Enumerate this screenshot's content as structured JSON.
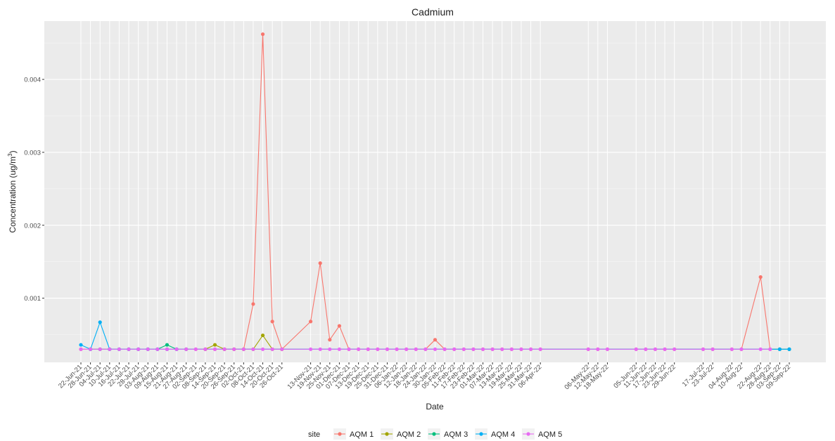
{
  "chart_data": {
    "type": "line",
    "title": "Cadmium",
    "xlabel": "Date",
    "ylabel": "Concentration (ug/m",
    "ylabel_superscript": "3",
    "ylabel_suffix": ")",
    "y_ticks": [
      0.001,
      0.002,
      0.003,
      0.004
    ],
    "y_tick_labels": [
      "0.001",
      "0.002",
      "0.003",
      "0.004"
    ],
    "ylim": [
      0.00012,
      0.0048
    ],
    "grid": true,
    "legend_title": "site",
    "legend_position": "bottom",
    "dates": [
      "2021-06-22",
      "2021-06-28",
      "2021-07-04",
      "2021-07-10",
      "2021-07-16",
      "2021-07-22",
      "2021-07-28",
      "2021-08-03",
      "2021-08-09",
      "2021-08-15",
      "2021-08-21",
      "2021-08-27",
      "2021-09-02",
      "2021-09-08",
      "2021-09-14",
      "2021-09-20",
      "2021-09-26",
      "2021-10-02",
      "2021-10-08",
      "2021-10-14",
      "2021-10-20",
      "2021-10-26",
      "2021-11-13",
      "2021-11-19",
      "2021-11-25",
      "2021-12-01",
      "2021-12-07",
      "2021-12-13",
      "2021-12-19",
      "2021-12-25",
      "2021-12-31",
      "2022-01-06",
      "2022-01-12",
      "2022-01-18",
      "2022-01-24",
      "2022-01-30",
      "2022-02-05",
      "2022-02-11",
      "2022-02-17",
      "2022-02-23",
      "2022-03-01",
      "2022-03-07",
      "2022-03-13",
      "2022-03-19",
      "2022-03-25",
      "2022-03-31",
      "2022-04-06",
      "2022-05-06",
      "2022-05-12",
      "2022-05-18",
      "2022-06-05",
      "2022-06-11",
      "2022-06-17",
      "2022-06-23",
      "2022-06-29",
      "2022-07-17",
      "2022-07-23",
      "2022-08-04",
      "2022-08-10",
      "2022-08-22",
      "2022-08-28",
      "2022-09-03",
      "2022-09-09"
    ],
    "tick_labels": [
      "22-Jun-21",
      "28-Jun-21",
      "04-Jul-21",
      "10-Jul-21",
      "16-Jul-21",
      "22-Jul-21",
      "28-Jul-21",
      "03-Aug-21",
      "09-Aug-21",
      "15-Aug-21",
      "21-Aug-21",
      "27-Aug-21",
      "02-Sep-21",
      "08-Sep-21",
      "14-Sep-21",
      "20-Sep-21",
      "26-Sep-21",
      "02-Oct-21",
      "08-Oct-21",
      "14-Oct-21",
      "20-Oct-21",
      "26-Oct-21",
      "13-Nov-21",
      "19-Nov-21",
      "25-Nov-21",
      "01-Dec-21",
      "07-Dec-21",
      "13-Dec-21",
      "19-Dec-21",
      "25-Dec-21",
      "31-Dec-21",
      "06-Jan-22",
      "12-Jan-22",
      "18-Jan-22",
      "24-Jan-22",
      "30-Jan-22",
      "05-Feb-22",
      "11-Feb-22",
      "17-Feb-22",
      "23-Feb-22",
      "01-Mar-22",
      "07-Mar-22",
      "13-Mar-22",
      "19-Mar-22",
      "25-Mar-22",
      "31-Mar-22",
      "06-Apr-22",
      "06-May-22",
      "12-May-22",
      "18-May-22",
      "05-Jun-22",
      "11-Jun-22",
      "17-Jun-22",
      "23-Jun-22",
      "29-Jun-22",
      "17-Jul-22",
      "23-Jul-22",
      "04-Aug-22",
      "10-Aug-22",
      "22-Aug-22",
      "28-Aug-22",
      "03-Sep-22",
      "09-Sep-22"
    ],
    "series": [
      {
        "name": "AQM 1",
        "color": "#F8766D",
        "points": [
          [
            "2021-06-22",
            0.0003
          ],
          [
            "2021-06-28",
            0.0003
          ],
          [
            "2021-07-04",
            0.0003
          ],
          [
            "2021-07-10",
            0.0003
          ],
          [
            "2021-07-16",
            0.0003
          ],
          [
            "2021-07-22",
            0.0003
          ],
          [
            "2021-07-28",
            0.0003
          ],
          [
            "2021-08-03",
            0.0003
          ],
          [
            "2021-08-09",
            0.0003
          ],
          [
            "2021-08-15",
            0.0003
          ],
          [
            "2021-08-21",
            0.0003
          ],
          [
            "2021-08-27",
            0.0003
          ],
          [
            "2021-09-02",
            0.0003
          ],
          [
            "2021-09-08",
            0.0003
          ],
          [
            "2021-09-14",
            0.0003
          ],
          [
            "2021-09-20",
            0.0003
          ],
          [
            "2021-09-26",
            0.0003
          ],
          [
            "2021-10-02",
            0.0003
          ],
          [
            "2021-10-08",
            0.00092
          ],
          [
            "2021-10-14",
            0.00462
          ],
          [
            "2021-10-20",
            0.00068
          ],
          [
            "2021-10-26",
            0.0003
          ],
          [
            "2021-11-13",
            0.00068
          ],
          [
            "2021-11-19",
            0.00148
          ],
          [
            "2021-11-25",
            0.00043
          ],
          [
            "2021-12-01",
            0.00062
          ],
          [
            "2021-12-07",
            0.0003
          ],
          [
            "2021-12-13",
            0.0003
          ],
          [
            "2021-12-19",
            0.0003
          ],
          [
            "2021-12-25",
            0.0003
          ],
          [
            "2021-12-31",
            0.0003
          ],
          [
            "2022-01-06",
            0.0003
          ],
          [
            "2022-01-12",
            0.0003
          ],
          [
            "2022-01-18",
            0.0003
          ],
          [
            "2022-01-24",
            0.0003
          ],
          [
            "2022-01-30",
            0.00043
          ],
          [
            "2022-02-05",
            0.0003
          ],
          [
            "2022-02-11",
            0.0003
          ],
          [
            "2022-02-17",
            0.0003
          ],
          [
            "2022-02-23",
            0.0003
          ],
          [
            "2022-03-01",
            0.0003
          ],
          [
            "2022-03-07",
            0.0003
          ],
          [
            "2022-03-13",
            0.0003
          ],
          [
            "2022-03-19",
            0.0003
          ],
          [
            "2022-03-25",
            0.0003
          ],
          [
            "2022-03-31",
            0.0003
          ],
          [
            "2022-04-06",
            0.0003
          ],
          [
            "2022-05-06",
            0.0003
          ],
          [
            "2022-05-12",
            0.0003
          ],
          [
            "2022-05-18",
            0.0003
          ],
          [
            "2022-06-05",
            0.0003
          ],
          [
            "2022-06-11",
            0.0003
          ],
          [
            "2022-06-17",
            0.0003
          ],
          [
            "2022-06-23",
            0.0003
          ],
          [
            "2022-06-29",
            0.0003
          ],
          [
            "2022-07-17",
            0.0003
          ],
          [
            "2022-07-23",
            0.0003
          ],
          [
            "2022-08-04",
            0.0003
          ],
          [
            "2022-08-10",
            0.0003
          ],
          [
            "2022-08-22",
            0.00129
          ],
          [
            "2022-08-28",
            0.0003
          ],
          [
            "2022-09-03",
            0.0003
          ],
          [
            "2022-09-09",
            0.0003
          ]
        ]
      },
      {
        "name": "AQM 2",
        "color": "#A3A500",
        "points": [
          [
            "2021-09-08",
            0.0003
          ],
          [
            "2021-09-14",
            0.00036
          ],
          [
            "2021-09-20",
            0.0003
          ],
          [
            "2021-09-26",
            0.0003
          ],
          [
            "2021-10-02",
            0.0003
          ],
          [
            "2021-10-08",
            0.0003
          ],
          [
            "2021-10-14",
            0.00049
          ],
          [
            "2021-10-20",
            0.0003
          ],
          [
            "2021-10-26",
            0.0003
          ]
        ]
      },
      {
        "name": "AQM 3",
        "color": "#00BF7D",
        "points": [
          [
            "2021-06-28",
            0.0003
          ],
          [
            "2021-07-04",
            0.0003
          ],
          [
            "2021-07-10",
            0.0003
          ],
          [
            "2021-07-16",
            0.0003
          ],
          [
            "2021-07-22",
            0.0003
          ],
          [
            "2021-07-28",
            0.0003
          ],
          [
            "2021-08-03",
            0.0003
          ],
          [
            "2021-08-09",
            0.0003
          ],
          [
            "2021-08-15",
            0.00036
          ],
          [
            "2021-08-21",
            0.0003
          ],
          [
            "2021-08-27",
            0.0003
          ],
          [
            "2022-09-03",
            0.0003
          ],
          [
            "2022-09-09",
            0.0003
          ]
        ]
      },
      {
        "name": "AQM 4",
        "color": "#00B0F6",
        "points": [
          [
            "2021-06-22",
            0.00036
          ],
          [
            "2021-06-28",
            0.0003
          ],
          [
            "2021-07-04",
            0.00067
          ],
          [
            "2021-07-10",
            0.0003
          ],
          [
            "2021-07-16",
            0.0003
          ],
          [
            "2021-07-22",
            0.0003
          ],
          [
            "2021-07-28",
            0.0003
          ],
          [
            "2021-08-03",
            0.0003
          ],
          [
            "2021-08-09",
            0.0003
          ],
          [
            "2021-08-15",
            0.0003
          ],
          [
            "2021-08-21",
            0.0003
          ],
          [
            "2022-09-03",
            0.0003
          ],
          [
            "2022-09-09",
            0.0003
          ]
        ]
      },
      {
        "name": "AQM 5",
        "color": "#E76BF3",
        "points": [
          [
            "2021-06-22",
            0.0003
          ],
          [
            "2021-06-28",
            0.0003
          ],
          [
            "2021-07-04",
            0.0003
          ],
          [
            "2021-07-10",
            0.0003
          ],
          [
            "2021-07-16",
            0.0003
          ],
          [
            "2021-07-22",
            0.0003
          ],
          [
            "2021-07-28",
            0.0003
          ],
          [
            "2021-08-03",
            0.0003
          ],
          [
            "2021-08-09",
            0.0003
          ],
          [
            "2021-08-15",
            0.0003
          ],
          [
            "2021-08-21",
            0.0003
          ],
          [
            "2021-08-27",
            0.0003
          ],
          [
            "2021-09-02",
            0.0003
          ],
          [
            "2021-09-08",
            0.0003
          ],
          [
            "2021-09-14",
            0.0003
          ],
          [
            "2021-09-20",
            0.0003
          ],
          [
            "2021-09-26",
            0.0003
          ],
          [
            "2021-10-02",
            0.0003
          ],
          [
            "2021-10-08",
            0.0003
          ],
          [
            "2021-10-14",
            0.0003
          ],
          [
            "2021-10-20",
            0.0003
          ],
          [
            "2021-10-26",
            0.0003
          ],
          [
            "2021-11-13",
            0.0003
          ],
          [
            "2021-11-19",
            0.0003
          ],
          [
            "2021-11-25",
            0.0003
          ],
          [
            "2021-12-01",
            0.0003
          ],
          [
            "2021-12-07",
            0.0003
          ],
          [
            "2021-12-13",
            0.0003
          ],
          [
            "2021-12-19",
            0.0003
          ],
          [
            "2021-12-25",
            0.0003
          ],
          [
            "2021-12-31",
            0.0003
          ],
          [
            "2022-01-06",
            0.0003
          ],
          [
            "2022-01-12",
            0.0003
          ],
          [
            "2022-01-18",
            0.0003
          ],
          [
            "2022-01-24",
            0.0003
          ],
          [
            "2022-01-30",
            0.0003
          ],
          [
            "2022-02-05",
            0.0003
          ],
          [
            "2022-02-11",
            0.0003
          ],
          [
            "2022-02-17",
            0.0003
          ],
          [
            "2022-02-23",
            0.0003
          ],
          [
            "2022-03-01",
            0.0003
          ],
          [
            "2022-03-07",
            0.0003
          ],
          [
            "2022-03-13",
            0.0003
          ],
          [
            "2022-03-19",
            0.0003
          ],
          [
            "2022-03-25",
            0.0003
          ],
          [
            "2022-03-31",
            0.0003
          ],
          [
            "2022-04-06",
            0.0003
          ],
          [
            "2022-05-06",
            0.0003
          ],
          [
            "2022-05-12",
            0.0003
          ],
          [
            "2022-05-18",
            0.0003
          ],
          [
            "2022-06-05",
            0.0003
          ],
          [
            "2022-06-11",
            0.0003
          ],
          [
            "2022-06-17",
            0.0003
          ],
          [
            "2022-06-23",
            0.0003
          ],
          [
            "2022-06-29",
            0.0003
          ],
          [
            "2022-07-17",
            0.0003
          ],
          [
            "2022-07-23",
            0.0003
          ],
          [
            "2022-08-04",
            0.0003
          ],
          [
            "2022-08-10",
            0.0003
          ],
          [
            "2022-08-22",
            0.0003
          ],
          [
            "2022-08-28",
            0.0003
          ]
        ]
      }
    ]
  }
}
